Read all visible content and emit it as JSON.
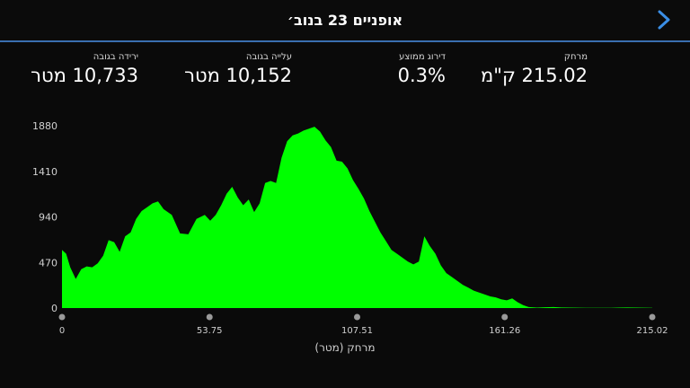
{
  "header": {
    "title": "אופניים 23 בנוב׳",
    "back_icon": "chevron-right-icon",
    "accent_color": "#3a8ee6"
  },
  "stats": {
    "distance": {
      "label": "מרחק",
      "value": "215.02 ק\"מ"
    },
    "avg_grade": {
      "label": "דירוג ממוצע",
      "value": "0.3%"
    },
    "ascent": {
      "label": "עלייה בגובה",
      "value": "10,152 מטר"
    },
    "descent": {
      "label": "ירידה בגובה",
      "value": "10,733 מטר"
    }
  },
  "chart_data": {
    "type": "area",
    "xlabel": "מרחק (מטר)",
    "ylabel": "",
    "x_ticks": [
      "0",
      "53.75",
      "107.51",
      "161.26",
      "215.02"
    ],
    "y_ticks": [
      "0",
      "470",
      "940",
      "1410",
      "1880"
    ],
    "xlim": [
      0,
      215.02
    ],
    "ylim": [
      0,
      1880
    ],
    "fill_color": "#00ff00",
    "grid": false,
    "series": [
      {
        "x": [
          0,
          1.5,
          3,
          5,
          7,
          9,
          11,
          13,
          15,
          17,
          19,
          21,
          23,
          25,
          27,
          29,
          31,
          33,
          35,
          37,
          40,
          43,
          46,
          49,
          52,
          54,
          56,
          58,
          60,
          62,
          64,
          66,
          68,
          70,
          72,
          74,
          76,
          78,
          80,
          82,
          84,
          86,
          88,
          90,
          92,
          94,
          96,
          98,
          100,
          102,
          104,
          106,
          108,
          110,
          112,
          114,
          116,
          118,
          120,
          122,
          124,
          126,
          128,
          130,
          132,
          134,
          136,
          138,
          140,
          142,
          144,
          146,
          148,
          150,
          152,
          154,
          156,
          158,
          160,
          162,
          164,
          166,
          168,
          170,
          173,
          176,
          179,
          182,
          185,
          188,
          191,
          194,
          197,
          200,
          203,
          206,
          209,
          212,
          215.02
        ],
        "y": [
          600,
          560,
          420,
          300,
          400,
          430,
          420,
          460,
          540,
          700,
          680,
          580,
          740,
          780,
          920,
          1000,
          1040,
          1080,
          1100,
          1020,
          960,
          770,
          760,
          920,
          960,
          900,
          960,
          1060,
          1180,
          1250,
          1140,
          1060,
          1120,
          990,
          1080,
          1290,
          1310,
          1290,
          1550,
          1720,
          1780,
          1800,
          1830,
          1850,
          1870,
          1820,
          1730,
          1660,
          1520,
          1510,
          1440,
          1320,
          1230,
          1130,
          1000,
          890,
          780,
          690,
          600,
          560,
          520,
          480,
          450,
          480,
          740,
          640,
          560,
          440,
          360,
          320,
          280,
          240,
          210,
          180,
          160,
          140,
          120,
          110,
          90,
          80,
          100,
          60,
          30,
          10,
          5,
          8,
          10,
          6,
          5,
          4,
          3,
          2,
          2,
          2,
          5,
          6,
          5,
          4,
          3
        ]
      }
    ]
  }
}
